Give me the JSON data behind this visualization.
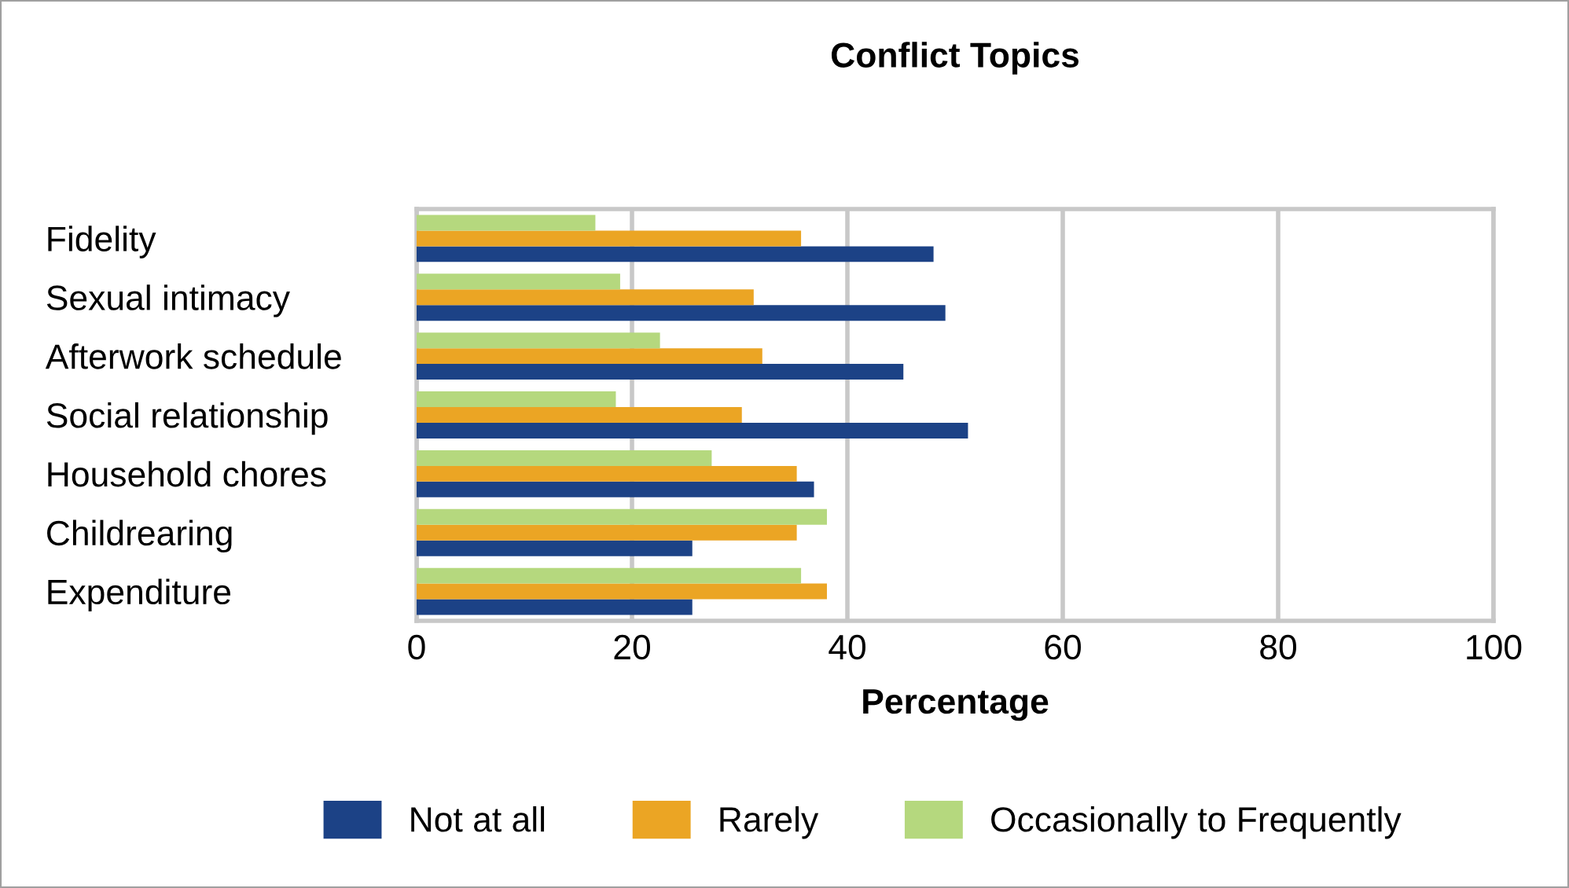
{
  "chart_data": {
    "type": "bar",
    "orientation": "horizontal",
    "title": "Conflict Topics",
    "xlabel": "Percentage",
    "categories": [
      "Fidelity",
      "Sexual intimacy",
      "Afterwork schedule",
      "Social relationship",
      "Household chores",
      "Childrearing",
      "Expenditure"
    ],
    "series": [
      {
        "name": "Not at all",
        "color": "#1c4286",
        "values": [
          48.0,
          49.1,
          45.2,
          51.2,
          36.9,
          25.6,
          25.6
        ]
      },
      {
        "name": "Rarely",
        "color": "#eba524",
        "values": [
          35.7,
          31.3,
          32.1,
          30.2,
          35.3,
          35.3,
          38.1
        ]
      },
      {
        "name": "Occasionally to Frequently",
        "color": "#b5d87e",
        "values": [
          16.6,
          18.9,
          22.6,
          18.5,
          27.4,
          38.1,
          35.7
        ]
      }
    ],
    "xlim": [
      0,
      100
    ],
    "xticks": [
      0,
      20,
      40,
      60,
      80,
      100
    ],
    "grid": "x",
    "legend": "bottom"
  }
}
